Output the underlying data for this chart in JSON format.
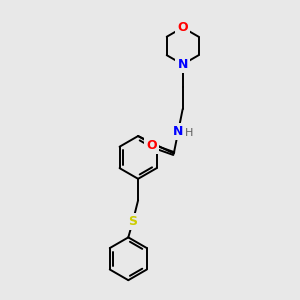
{
  "bg_color": "#e8e8e8",
  "bond_color": "#000000",
  "atom_colors": {
    "O": "#ff0000",
    "N": "#0000ff",
    "S": "#cccc00",
    "C": "#000000",
    "H": "#606060"
  },
  "bond_width": 1.4,
  "fig_size": [
    3.0,
    3.0
  ],
  "dpi": 100
}
